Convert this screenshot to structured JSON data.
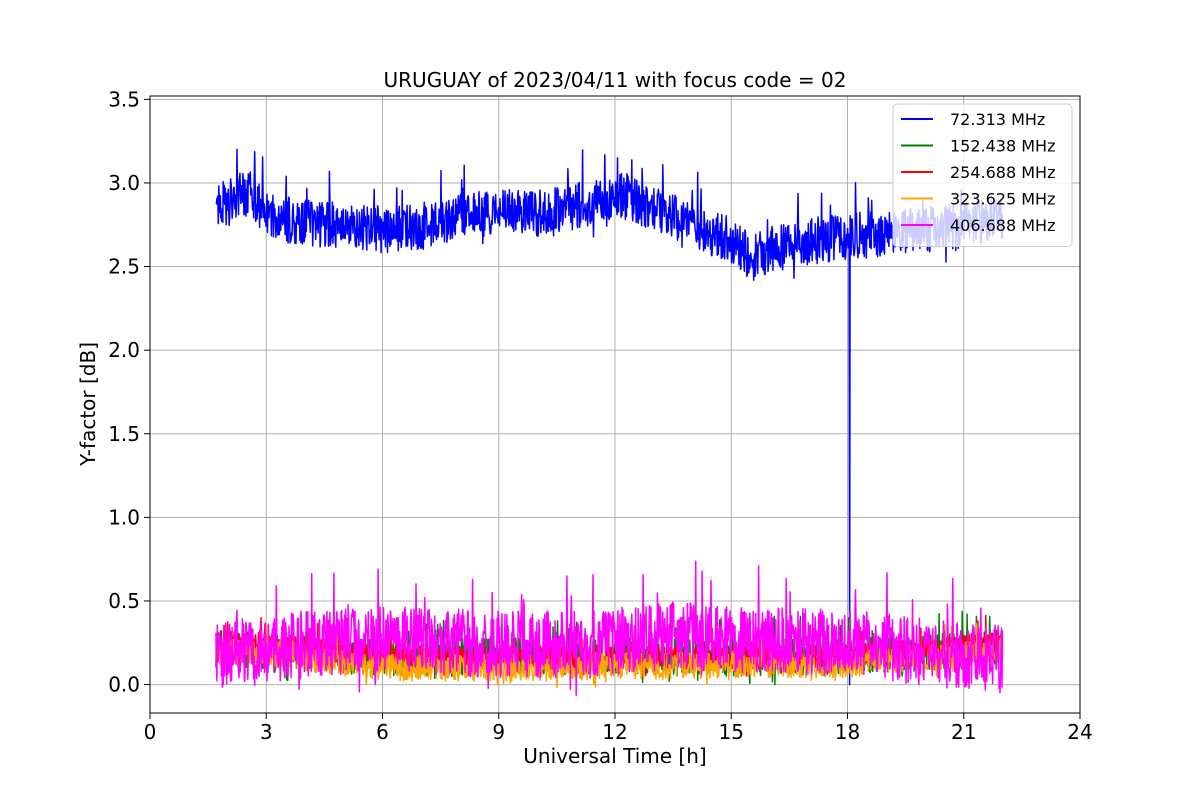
{
  "chart_data": {
    "type": "line",
    "title": "URUGUAY of 2023/04/11 with focus code = 02",
    "xlabel": "Universal Time [h]",
    "ylabel": "Y-factor [dB]",
    "xlim": [
      0,
      24
    ],
    "ylim": [
      -0.17,
      3.52
    ],
    "xticks": [
      0,
      3,
      6,
      9,
      12,
      15,
      18,
      21,
      24
    ],
    "xtick_labels": [
      "0",
      "3",
      "6",
      "9",
      "12",
      "15",
      "18",
      "21",
      "24"
    ],
    "yticks": [
      0.0,
      0.5,
      1.0,
      1.5,
      2.0,
      2.5,
      3.0,
      3.5
    ],
    "ytick_labels": [
      "0.0",
      "0.5",
      "1.0",
      "1.5",
      "2.0",
      "2.5",
      "3.0",
      "3.5"
    ],
    "grid": true,
    "legend_position": "top-right",
    "x_range_observed": [
      1.7,
      22.0
    ],
    "series": [
      {
        "name": " 72.313 MHz",
        "color": "#0000ff",
        "trend_x": [
          1.7,
          2.0,
          2.5,
          3.0,
          3.5,
          4.0,
          5.0,
          6.0,
          7.0,
          8.0,
          9.0,
          10.0,
          11.0,
          12.0,
          13.0,
          14.0,
          15.0,
          15.5,
          16.0,
          17.0,
          18.0,
          19.0,
          20.0,
          21.0,
          22.0
        ],
        "trend_y": [
          2.85,
          2.88,
          2.95,
          2.82,
          2.78,
          2.76,
          2.75,
          2.72,
          2.74,
          2.8,
          2.82,
          2.82,
          2.86,
          2.93,
          2.85,
          2.75,
          2.66,
          2.55,
          2.6,
          2.65,
          2.68,
          2.7,
          2.72,
          2.75,
          2.78
        ],
        "noise": 0.14,
        "spikes": [
          {
            "x": 18.05,
            "y": 0.0
          }
        ]
      },
      {
        "name": "152.438 MHz",
        "color": "#008000",
        "trend_x": [
          1.7,
          3.0,
          6.0,
          9.0,
          12.0,
          15.0,
          18.0,
          21.0,
          22.0
        ],
        "trend_y": [
          0.22,
          0.2,
          0.16,
          0.17,
          0.17,
          0.16,
          0.17,
          0.2,
          0.22
        ],
        "noise": 0.11
      },
      {
        "name": "254.688 MHz",
        "color": "#ff0000",
        "trend_x": [
          1.7,
          3.0,
          6.0,
          9.0,
          12.0,
          15.0,
          18.0,
          21.0,
          22.0
        ],
        "trend_y": [
          0.25,
          0.24,
          0.17,
          0.16,
          0.16,
          0.16,
          0.17,
          0.23,
          0.26
        ],
        "noise": 0.07
      },
      {
        "name": "323.625 MHz",
        "color": "#ffa500",
        "trend_x": [
          1.7,
          3.0,
          6.0,
          9.0,
          12.0,
          15.0,
          18.0,
          21.0,
          22.0
        ],
        "trend_y": [
          0.2,
          0.19,
          0.1,
          0.1,
          0.11,
          0.12,
          0.12,
          0.18,
          0.2
        ],
        "noise": 0.08
      },
      {
        "name": "406.688 MHz",
        "color": "#ff00ff",
        "trend_x": [
          1.7,
          3.0,
          3.8,
          6.0,
          9.0,
          12.0,
          13.5,
          15.0,
          18.0,
          20.5,
          22.0
        ],
        "trend_y": [
          0.17,
          0.18,
          0.25,
          0.27,
          0.24,
          0.24,
          0.3,
          0.27,
          0.25,
          0.18,
          0.15
        ],
        "noise": 0.2
      }
    ]
  }
}
